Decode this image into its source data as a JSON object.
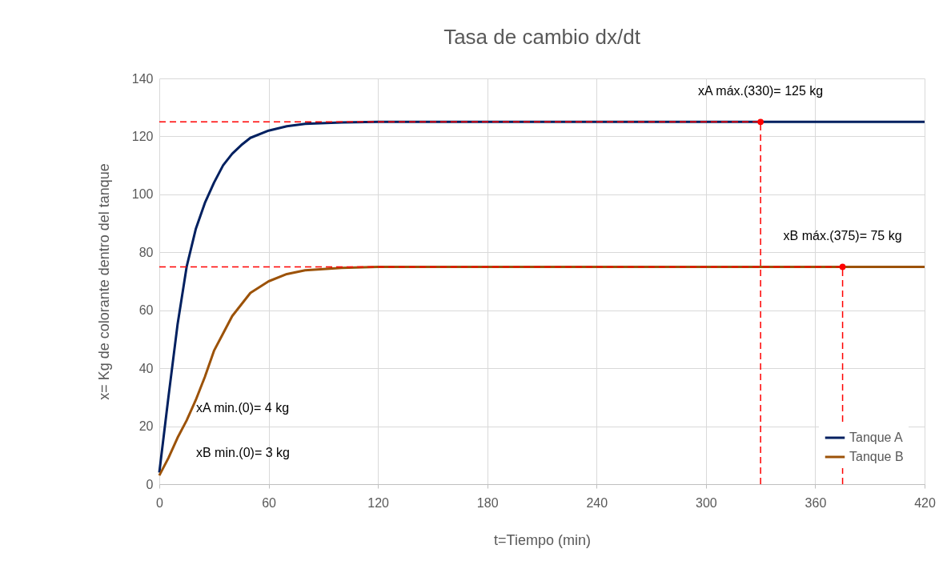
{
  "chart_data": {
    "type": "line",
    "title": "Tasa de cambio dx/dt",
    "xlabel": "t=Tiempo (min)",
    "ylabel": "x= Kg de colorante dentro del tanque",
    "series": [
      {
        "name": "Tanque A",
        "color": "#002060",
        "x": [
          0,
          5,
          10,
          15,
          20,
          25,
          30,
          35,
          40,
          45,
          50,
          60,
          70,
          80,
          100,
          120,
          420
        ],
        "values": [
          4,
          30,
          55,
          75,
          88,
          97,
          104,
          110,
          114,
          117,
          119.5,
          122,
          123.5,
          124.3,
          124.8,
          125,
          125
        ]
      },
      {
        "name": "Tanque B",
        "color": "#9c5208",
        "x": [
          0,
          5,
          10,
          15,
          20,
          25,
          30,
          35,
          40,
          45,
          50,
          60,
          70,
          80,
          100,
          120,
          420
        ],
        "values": [
          3,
          9,
          16,
          22,
          29,
          37,
          46,
          52,
          58,
          62,
          66,
          70,
          72.5,
          73.8,
          74.6,
          75,
          75
        ]
      }
    ],
    "xlim": [
      0,
      420
    ],
    "xticks": [
      0,
      60,
      120,
      180,
      240,
      300,
      360,
      420
    ],
    "ylim": [
      0,
      140
    ],
    "yticks": [
      0,
      20,
      40,
      60,
      80,
      100,
      120,
      140
    ],
    "ref_lines": [
      {
        "axis": "y",
        "value": 125,
        "color": "#ff0000",
        "line_style": "dashed"
      },
      {
        "axis": "y",
        "value": 75,
        "color": "#ff0000",
        "line_style": "dashed"
      },
      {
        "axis": "x",
        "value": 330,
        "color": "#ff0000",
        "line_style": "dashed"
      },
      {
        "axis": "x",
        "value": 375,
        "color": "#ff0000",
        "line_style": "dashed"
      }
    ],
    "grid": true,
    "legend": "bottom right",
    "marker": "none",
    "line_style": "solid",
    "annotations": [
      {
        "text": "xA máx.(330)= 125 kg",
        "x": 330,
        "y": 125
      },
      {
        "text": "xB máx.(375)= 75 kg",
        "x": 375,
        "y": 75
      },
      "xA min.(0)= 4 kg",
      "xB min.(0)= 3 kg"
    ]
  }
}
